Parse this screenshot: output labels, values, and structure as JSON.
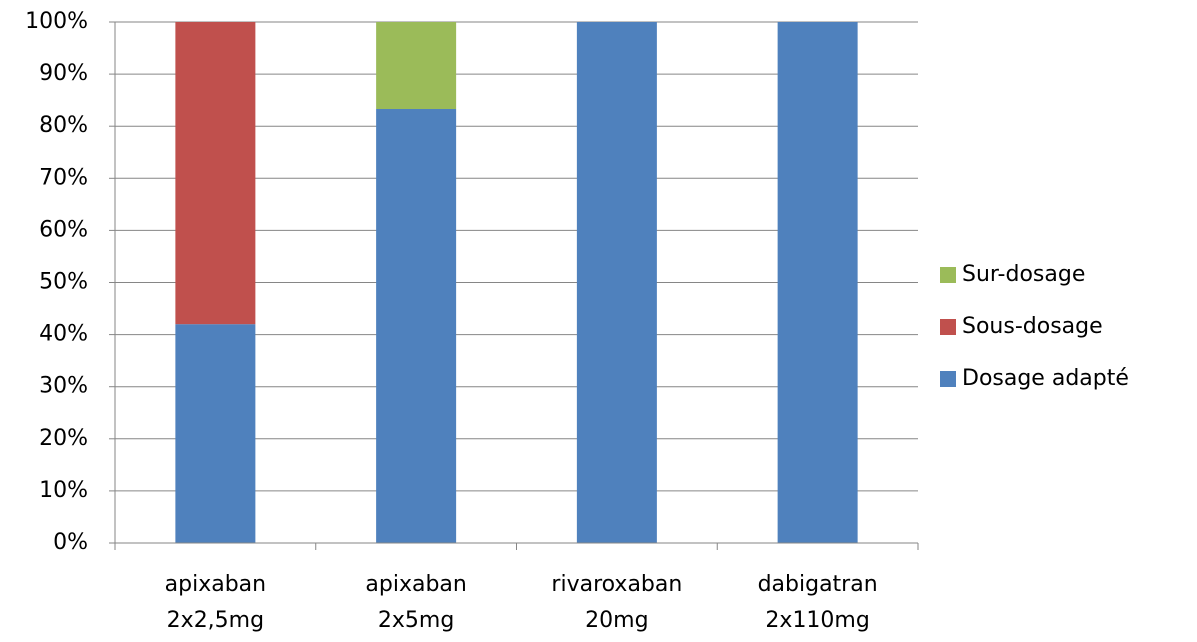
{
  "chart_data": {
    "type": "stacked_bar",
    "categories": [
      "apixaban 2x2,5mg",
      "apixaban 2x5mg",
      "rivaroxaban 20mg",
      "dabigatran 2x110mg"
    ],
    "series": [
      {
        "name": "Dosage adapté",
        "color": "#4f81bd",
        "values": [
          42,
          83.3,
          100,
          100
        ]
      },
      {
        "name": "Sous-dosage",
        "color": "#c0504d",
        "values": [
          58,
          0,
          0,
          0
        ]
      },
      {
        "name": "Sur-dosage",
        "color": "#9bbb59",
        "values": [
          0,
          16.7,
          0,
          0
        ]
      }
    ],
    "ylim": [
      0,
      100
    ],
    "yticks": [
      {
        "value": 0,
        "label": "0%"
      },
      {
        "value": 10,
        "label": "10%"
      },
      {
        "value": 20,
        "label": "20%"
      },
      {
        "value": 30,
        "label": "30%"
      },
      {
        "value": 40,
        "label": "40%"
      },
      {
        "value": 50,
        "label": "50%"
      },
      {
        "value": 60,
        "label": "60%"
      },
      {
        "value": 70,
        "label": "70%"
      },
      {
        "value": 80,
        "label": "80%"
      },
      {
        "value": 90,
        "label": "90%"
      },
      {
        "value": 100,
        "label": "100%"
      }
    ],
    "grid": true,
    "legend": "right"
  }
}
